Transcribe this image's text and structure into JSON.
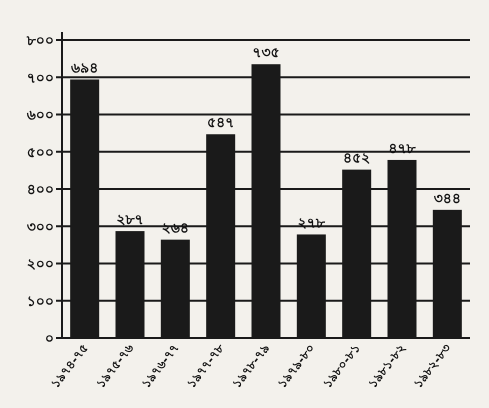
{
  "chart_data": {
    "type": "bar",
    "title": "",
    "xlabel": "",
    "ylabel": "",
    "ylim": [
      0,
      800
    ],
    "y_tick_labels": [
      "০",
      "১০০",
      "২০০",
      "৩০০",
      "৪০০",
      "৫০০",
      "৬০০",
      "৭০০",
      "৮০০"
    ],
    "y_tick_values": [
      0,
      100,
      200,
      300,
      400,
      500,
      600,
      700,
      800
    ],
    "categories": [
      "১৯৭৪-৭৫",
      "১৯৭৫-৭৬",
      "১৯৭৬-৭৭",
      "১৯৭৭-৭৮",
      "১৯৭৮-৭৯",
      "১৯৭৯-৮০",
      "১৯৮০-৮১",
      "১৯৮১-৮২",
      "১৯৮২-৮৩"
    ],
    "values": [
      694,
      287,
      264,
      547,
      735,
      278,
      452,
      478,
      344
    ],
    "data_labels": [
      "৬৯৪",
      "২৮৭",
      "২৬৪",
      "৫৪৭",
      "৭৩৫",
      "২৭৮",
      "৪৫২",
      "৪৭৮",
      "৩৪৪"
    ],
    "grid": true,
    "bar_color": "#1a1a1a"
  }
}
